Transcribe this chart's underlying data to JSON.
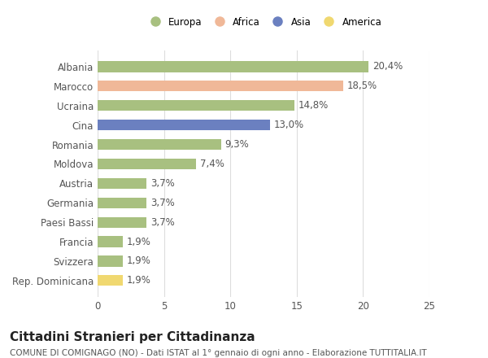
{
  "categories": [
    "Albania",
    "Marocco",
    "Ucraina",
    "Cina",
    "Romania",
    "Moldova",
    "Austria",
    "Germania",
    "Paesi Bassi",
    "Francia",
    "Svizzera",
    "Rep. Dominicana"
  ],
  "values": [
    20.4,
    18.5,
    14.8,
    13.0,
    9.3,
    7.4,
    3.7,
    3.7,
    3.7,
    1.9,
    1.9,
    1.9
  ],
  "labels": [
    "20,4%",
    "18,5%",
    "14,8%",
    "13,0%",
    "9,3%",
    "7,4%",
    "3,7%",
    "3,7%",
    "3,7%",
    "1,9%",
    "1,9%",
    "1,9%"
  ],
  "colors": [
    "#a8c080",
    "#f0b898",
    "#a8c080",
    "#6b80c0",
    "#a8c080",
    "#a8c080",
    "#a8c080",
    "#a8c080",
    "#a8c080",
    "#a8c080",
    "#a8c080",
    "#f0d870"
  ],
  "legend_labels": [
    "Europa",
    "Africa",
    "Asia",
    "America"
  ],
  "legend_colors": [
    "#a8c080",
    "#f0b898",
    "#6b80c0",
    "#f0d870"
  ],
  "title_main": "Cittadini Stranieri per Cittadinanza",
  "title_sub": "COMUNE DI COMIGNAGO (NO) - Dati ISTAT al 1° gennaio di ogni anno - Elaborazione TUTTITALIA.IT",
  "xlim": [
    0,
    25
  ],
  "xticks": [
    0,
    5,
    10,
    15,
    20,
    25
  ],
  "background_color": "#ffffff",
  "grid_color": "#dddddd",
  "bar_height": 0.55,
  "label_fontsize": 8.5,
  "tick_fontsize": 8.5,
  "title_fontsize": 11,
  "subtitle_fontsize": 7.5
}
